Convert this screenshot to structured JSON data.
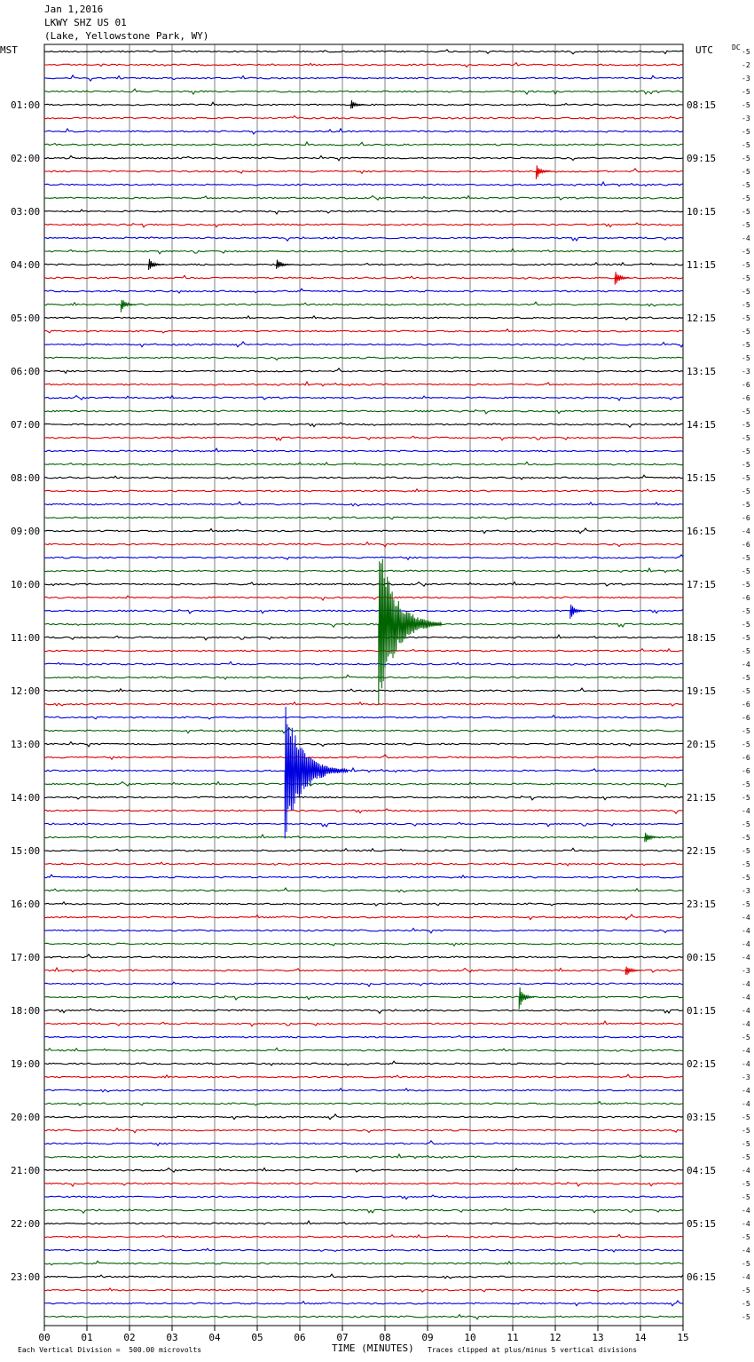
{
  "header": {
    "date": "Jan 1,2016",
    "station": "LKWY SHZ US 01",
    "location": "(Lake, Yellowstone Park, WY)"
  },
  "left_tz": "MST",
  "right_tz": "UTC",
  "dc_label": "DC",
  "footer": {
    "scale_note": "Each Vertical Division =  500.00 microvolts",
    "xaxis_title": "TIME (MINUTES)",
    "clip_note": "Traces clipped at plus/minus 5 vertical divisions"
  },
  "colors": {
    "trace_cycle": [
      "#000000",
      "#e00000",
      "#0000e0",
      "#006400"
    ],
    "grid": "#808080"
  },
  "chart_data": {
    "type": "line",
    "title": "LKWY SHZ US 01",
    "xlabel": "TIME (MINUTES)",
    "xlim": [
      0,
      15
    ],
    "x_ticks": [
      "00",
      "01",
      "02",
      "03",
      "04",
      "05",
      "06",
      "07",
      "08",
      "09",
      "10",
      "11",
      "12",
      "13",
      "14",
      "15"
    ],
    "row_count": 96,
    "left_hour_labels": [
      "01:00",
      "02:00",
      "03:00",
      "04:00",
      "05:00",
      "06:00",
      "07:00",
      "08:00",
      "09:00",
      "10:00",
      "11:00",
      "12:00",
      "13:00",
      "14:00",
      "15:00",
      "16:00",
      "17:00",
      "18:00",
      "19:00",
      "20:00",
      "21:00",
      "22:00",
      "23:00"
    ],
    "right_hour_labels": [
      "08:15",
      "09:15",
      "10:15",
      "11:15",
      "12:15",
      "13:15",
      "14:15",
      "15:15",
      "16:15",
      "17:15",
      "18:15",
      "19:15",
      "20:15",
      "21:15",
      "22:15",
      "23:15",
      "00:15",
      "01:15",
      "02:15",
      "03:15",
      "04:15",
      "05:15",
      "06:15"
    ],
    "dc_offsets": [
      "-5",
      "-2",
      "-3",
      "-5",
      "-5",
      "-3",
      "-5",
      "-5",
      "-5",
      "-5",
      "-5",
      "-5",
      "-5",
      "-5",
      "-4",
      "-5",
      "-5",
      "-5",
      "-5",
      "-5",
      "-5",
      "-5",
      "-5",
      "-5",
      "-3",
      "-6",
      "-6",
      "-5",
      "-5",
      "-5",
      "-5",
      "-5",
      "-5",
      "-5",
      "-5",
      "-6",
      "-4",
      "-6",
      "-5",
      "-5",
      "-5",
      "-6",
      "-5",
      "-5",
      "-5",
      "-5",
      "-4",
      "-5",
      "-5",
      "-6",
      "-6",
      "-5",
      "-5",
      "-6",
      "-6",
      "-5",
      "-5",
      "-4",
      "-5",
      "-5",
      "-5",
      "-5",
      "-5",
      "-3",
      "-5",
      "-4",
      "-4",
      "-4",
      "-4",
      "-3",
      "-4",
      "-4",
      "-4",
      "-4",
      "-5",
      "-4",
      "-4",
      "-3",
      "-4",
      "-4",
      "-5",
      "-5",
      "-5",
      "-5",
      "-4",
      "-5",
      "-5",
      "-4",
      "-4",
      "-5",
      "-4",
      "-5",
      "-4",
      "-5",
      "-5",
      "-5"
    ],
    "events": [
      {
        "row": 43,
        "minute": 7.85,
        "amplitude": 95
      },
      {
        "row": 54,
        "minute": 5.65,
        "amplitude": 80
      },
      {
        "row": 4,
        "minute": 7.2,
        "amplitude": 6
      },
      {
        "row": 9,
        "minute": 11.55,
        "amplitude": 10
      },
      {
        "row": 16,
        "minute": 2.45,
        "amplitude": 8
      },
      {
        "row": 16,
        "minute": 5.45,
        "amplitude": 8
      },
      {
        "row": 17,
        "minute": 13.4,
        "amplitude": 12
      },
      {
        "row": 19,
        "minute": 1.8,
        "amplitude": 9
      },
      {
        "row": 42,
        "minute": 12.35,
        "amplitude": 10
      },
      {
        "row": 59,
        "minute": 14.1,
        "amplitude": 9
      },
      {
        "row": 71,
        "minute": 11.15,
        "amplitude": 16
      },
      {
        "row": 69,
        "minute": 13.65,
        "amplitude": 8
      }
    ]
  }
}
